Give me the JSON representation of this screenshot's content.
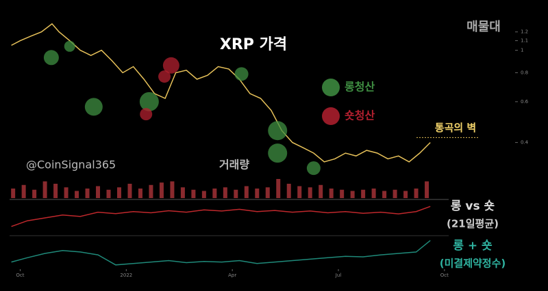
{
  "chart_data": [
    {
      "type": "line",
      "title": "XRP 가격",
      "log_scale": true,
      "annotations": [
        "매물대",
        "@CoinSignal365"
      ],
      "wall": {
        "label": "통곡의 벽",
        "value": 0.42
      },
      "xlim": [
        0.7,
        13.1
      ],
      "ylim": [
        0.3,
        1.4
      ],
      "yticks": [
        1.2,
        1.1,
        1,
        0.8,
        0.6,
        0.4
      ],
      "series": [
        {
          "color": "#e8c25a",
          "x": [
            0.75,
            1.0,
            1.3,
            1.6,
            1.9,
            2.1,
            2.4,
            2.7,
            3.0,
            3.3,
            3.6,
            3.9,
            4.2,
            4.5,
            4.8,
            5.1,
            5.4,
            5.7,
            6.0,
            6.3,
            6.6,
            6.9,
            7.2,
            7.5,
            7.8,
            8.1,
            8.4,
            8.7,
            9.0,
            9.3,
            9.6,
            9.9,
            10.2,
            10.5,
            10.8,
            11.1,
            11.4,
            11.7,
            12.0,
            12.3,
            12.6
          ],
          "values": [
            1.05,
            1.1,
            1.15,
            1.2,
            1.3,
            1.2,
            1.1,
            1.0,
            0.95,
            1.0,
            0.9,
            0.8,
            0.85,
            0.75,
            0.65,
            0.62,
            0.8,
            0.82,
            0.75,
            0.78,
            0.85,
            0.83,
            0.75,
            0.65,
            0.62,
            0.55,
            0.45,
            0.4,
            0.38,
            0.36,
            0.33,
            0.34,
            0.36,
            0.35,
            0.37,
            0.36,
            0.34,
            0.35,
            0.33,
            0.36,
            0.4
          ]
        }
      ],
      "bubbles": [
        {
          "name": "롱청산",
          "color": "#3f8f42",
          "x": [
            1.88,
            2.4,
            3.08,
            4.65,
            7.26,
            8.28,
            8.28,
            9.3
          ],
          "values": [
            0.93,
            1.04,
            0.57,
            0.6,
            0.79,
            0.45,
            0.36,
            0.31
          ],
          "sizes": [
            11,
            8,
            13,
            14,
            10,
            14,
            14,
            10
          ]
        },
        {
          "name": "숏청산",
          "color": "#b3202f",
          "x": [
            5.27,
            4.56,
            5.08
          ],
          "values": [
            0.86,
            0.53,
            0.77
          ],
          "sizes": [
            12,
            9,
            9
          ]
        }
      ]
    },
    {
      "type": "bar",
      "title": "거래량",
      "color": "#8a2a2e",
      "ylim": [
        0,
        100
      ],
      "x": [
        0.8,
        1.1,
        1.4,
        1.7,
        2.0,
        2.3,
        2.6,
        2.9,
        3.2,
        3.5,
        3.8,
        4.1,
        4.4,
        4.7,
        5.0,
        5.3,
        5.6,
        5.9,
        6.2,
        6.5,
        6.8,
        7.1,
        7.4,
        7.7,
        8.0,
        8.3,
        8.6,
        8.9,
        9.2,
        9.5,
        9.8,
        10.1,
        10.4,
        10.7,
        11.0,
        11.3,
        11.6,
        11.9,
        12.2,
        12.5
      ],
      "values": [
        40,
        55,
        35,
        70,
        60,
        45,
        30,
        40,
        50,
        35,
        45,
        60,
        40,
        55,
        65,
        70,
        45,
        35,
        30,
        40,
        45,
        35,
        50,
        40,
        45,
        80,
        60,
        50,
        45,
        55,
        40,
        35,
        30,
        35,
        40,
        30,
        35,
        30,
        40,
        70
      ]
    },
    {
      "type": "line",
      "title": "롱 vs 숏",
      "subtitle": "(21일평균)",
      "color": "#c0282c",
      "ylim": [
        0,
        100
      ],
      "x": [
        0.75,
        1.2,
        1.7,
        2.2,
        2.7,
        3.2,
        3.7,
        4.2,
        4.7,
        5.2,
        5.7,
        6.2,
        6.7,
        7.2,
        7.7,
        8.2,
        8.7,
        9.2,
        9.7,
        10.2,
        10.7,
        11.2,
        11.7,
        12.2,
        12.6
      ],
      "values": [
        20,
        40,
        50,
        60,
        55,
        70,
        65,
        72,
        68,
        75,
        70,
        78,
        74,
        80,
        72,
        76,
        70,
        74,
        68,
        72,
        66,
        70,
        64,
        72,
        90
      ]
    },
    {
      "type": "line",
      "title": "롱 + 숏",
      "subtitle": "(미결제약정수)",
      "color": "#1f8a7a",
      "ylim": [
        0,
        100
      ],
      "xticks": [
        {
          "value": 1,
          "label": "Oct"
        },
        {
          "value": 4,
          "label": "2022"
        },
        {
          "value": 7,
          "label": "Apr"
        },
        {
          "value": 10,
          "label": "Jul"
        },
        {
          "value": 13,
          "label": "Oct"
        }
      ],
      "x": [
        0.75,
        1.2,
        1.7,
        2.2,
        2.7,
        3.2,
        3.7,
        4.2,
        4.7,
        5.2,
        5.7,
        6.2,
        6.7,
        7.2,
        7.7,
        8.2,
        8.7,
        9.2,
        9.7,
        10.2,
        10.7,
        11.2,
        11.7,
        12.2,
        12.6
      ],
      "values": [
        20,
        35,
        50,
        60,
        55,
        45,
        10,
        15,
        20,
        25,
        18,
        22,
        20,
        25,
        15,
        20,
        25,
        30,
        35,
        40,
        38,
        45,
        50,
        55,
        95
      ]
    }
  ]
}
